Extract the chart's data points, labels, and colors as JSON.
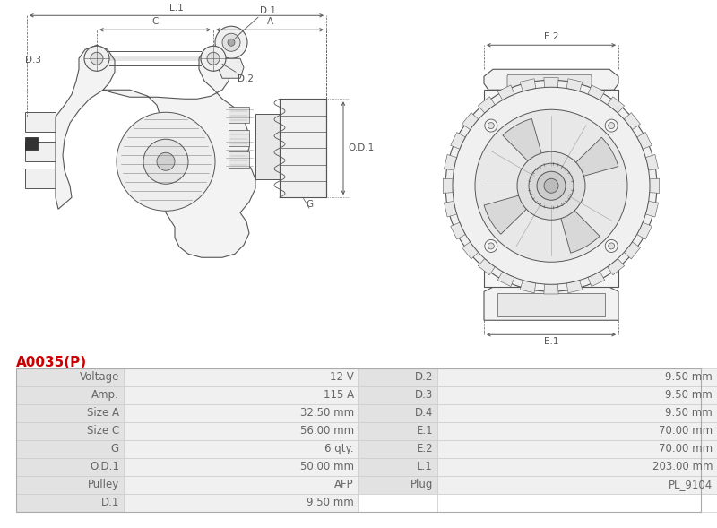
{
  "title": "A0035(P)",
  "title_color": "#cc0000",
  "table_data": [
    [
      "Voltage",
      "12 V",
      "D.2",
      "9.50 mm"
    ],
    [
      "Amp.",
      "115 A",
      "D.3",
      "9.50 mm"
    ],
    [
      "Size A",
      "32.50 mm",
      "D.4",
      "9.50 mm"
    ],
    [
      "Size C",
      "56.00 mm",
      "E.1",
      "70.00 mm"
    ],
    [
      "G",
      "6 qty.",
      "E.2",
      "70.00 mm"
    ],
    [
      "O.D.1",
      "50.00 mm",
      "L.1",
      "203.00 mm"
    ],
    [
      "Pulley",
      "AFP",
      "Plug",
      "PL_9104"
    ],
    [
      "D.1",
      "9.50 mm",
      "",
      ""
    ]
  ],
  "bg_color_label": "#e2e2e2",
  "bg_color_value": "#f0f0f0",
  "border_color": "#cccccc",
  "text_color": "#666666",
  "font_size": 8.5,
  "line_color": "#555555",
  "dim_color": "#555555"
}
